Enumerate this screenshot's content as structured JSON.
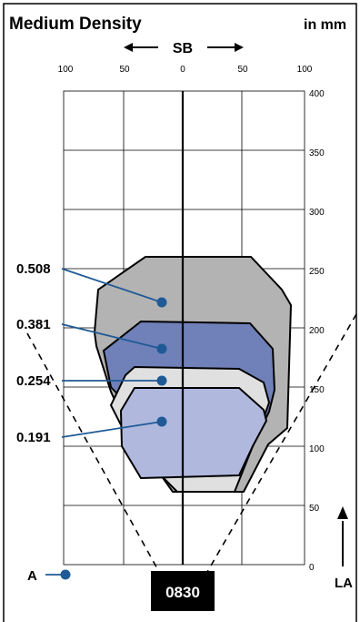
{
  "title": "Medium Density",
  "units": "in mm",
  "sb_label": "SB",
  "la_label": "LA",
  "a_label": "A",
  "model_badge": "0830",
  "x_ticks": [
    "100",
    "50",
    "0",
    "50",
    "100"
  ],
  "y_ticks": [
    "400",
    "350",
    "300",
    "250",
    "200",
    "150",
    "100",
    "50",
    "0"
  ],
  "density_labels": [
    "0.508",
    "0.381",
    "0.254",
    "0.191"
  ],
  "colors": {
    "zone_0508": "#b3b3b3",
    "zone_0381": "#7080b8",
    "zone_0254": "#e0e0e0",
    "zone_0191": "#b0b8de",
    "leader": "#1f5a96",
    "badge": "#000000"
  }
}
